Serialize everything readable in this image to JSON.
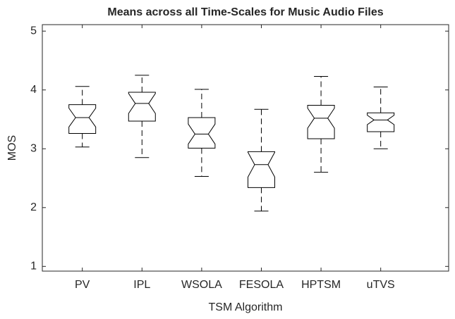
{
  "chart_data": {
    "type": "boxplot",
    "title": "Means across all Time-Scales for Music Audio Files",
    "x_label": "TSM Algorithm",
    "y_label": "MOS",
    "categories": [
      "PV",
      "IPL",
      "WSOLA",
      "FESOLA",
      "HPTSM",
      "uTVS"
    ],
    "whisker_low": [
      3.03,
      2.85,
      2.53,
      1.94,
      2.6,
      3.0
    ],
    "q1": [
      3.26,
      3.47,
      3.01,
      2.34,
      3.17,
      3.29
    ],
    "notch_low": [
      3.37,
      3.6,
      3.08,
      2.52,
      3.35,
      3.41
    ],
    "median": [
      3.53,
      3.77,
      3.25,
      2.73,
      3.52,
      3.49
    ],
    "notch_high": [
      3.69,
      3.94,
      3.42,
      2.94,
      3.69,
      3.57
    ],
    "q3": [
      3.75,
      3.96,
      3.53,
      2.95,
      3.74,
      3.61
    ],
    "whisker_high": [
      4.06,
      4.25,
      4.01,
      3.67,
      4.23,
      4.05
    ],
    "color": "#000000",
    "ylim": [
      0.92,
      5.11
    ],
    "yticks": [
      1,
      2,
      3,
      4,
      5
    ],
    "grid": false
  }
}
